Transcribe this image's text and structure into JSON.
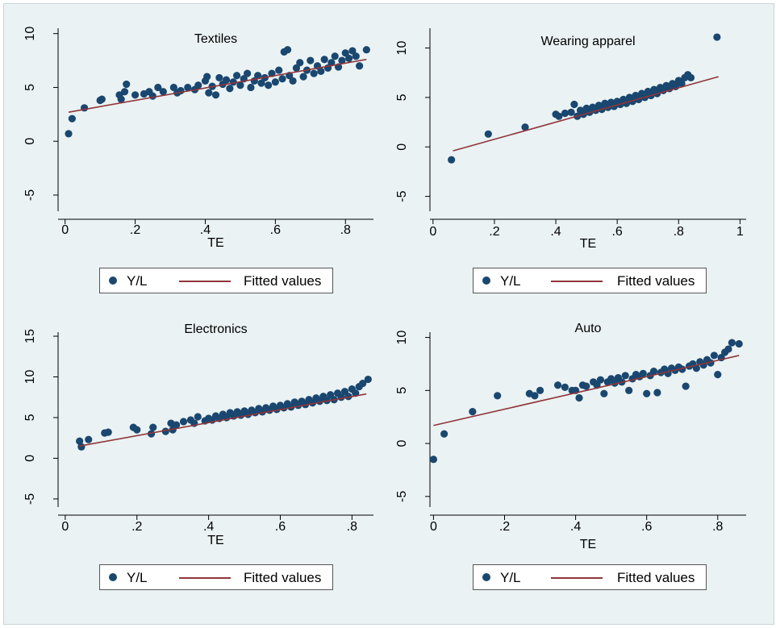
{
  "colors": {
    "background": "#eaf2f3",
    "marker": "#1a476f",
    "fit_line": "#90353b",
    "axis": "#000000"
  },
  "chart_data": [
    {
      "type": "scatter",
      "title": "Textiles",
      "xlabel": "TE",
      "ylabel": "",
      "xlim": [
        -0.02,
        0.88
      ],
      "ylim": [
        -6.5,
        10.5
      ],
      "xticks": [
        0,
        0.2,
        0.4,
        0.6,
        0.8
      ],
      "xtick_labels": [
        "0",
        ".2",
        ".4",
        ".6",
        ".8"
      ],
      "yticks": [
        -5,
        0,
        5,
        10
      ],
      "ytick_labels": [
        "-5",
        "0",
        "5",
        "10"
      ],
      "grid": false,
      "legend": {
        "position": "bottom",
        "entries": [
          "Y/L",
          "Fitted values"
        ]
      },
      "fit": {
        "x": [
          0.01,
          0.86
        ],
        "y": [
          2.7,
          7.6
        ]
      },
      "series": [
        {
          "name": "Y/L",
          "kind": "scatter",
          "points": [
            [
              0.01,
              0.7
            ],
            [
              0.02,
              2.1
            ],
            [
              0.055,
              3.1
            ],
            [
              0.1,
              3.8
            ],
            [
              0.105,
              3.9
            ],
            [
              0.155,
              4.3
            ],
            [
              0.16,
              3.9
            ],
            [
              0.17,
              4.6
            ],
            [
              0.175,
              5.3
            ],
            [
              0.2,
              4.3
            ],
            [
              0.225,
              4.4
            ],
            [
              0.24,
              4.6
            ],
            [
              0.25,
              4.2
            ],
            [
              0.265,
              5.0
            ],
            [
              0.28,
              4.6
            ],
            [
              0.31,
              5.0
            ],
            [
              0.32,
              4.5
            ],
            [
              0.33,
              4.7
            ],
            [
              0.35,
              5.0
            ],
            [
              0.37,
              4.8
            ],
            [
              0.38,
              5.2
            ],
            [
              0.4,
              5.6
            ],
            [
              0.405,
              6.0
            ],
            [
              0.41,
              4.5
            ],
            [
              0.42,
              5.1
            ],
            [
              0.43,
              4.3
            ],
            [
              0.44,
              5.9
            ],
            [
              0.45,
              5.3
            ],
            [
              0.46,
              5.7
            ],
            [
              0.47,
              4.9
            ],
            [
              0.48,
              5.5
            ],
            [
              0.49,
              6.1
            ],
            [
              0.5,
              5.2
            ],
            [
              0.51,
              5.8
            ],
            [
              0.52,
              6.3
            ],
            [
              0.53,
              5.0
            ],
            [
              0.54,
              5.6
            ],
            [
              0.55,
              6.1
            ],
            [
              0.56,
              5.4
            ],
            [
              0.57,
              5.9
            ],
            [
              0.58,
              5.2
            ],
            [
              0.59,
              6.3
            ],
            [
              0.6,
              5.5
            ],
            [
              0.61,
              6.6
            ],
            [
              0.62,
              5.8
            ],
            [
              0.625,
              8.3
            ],
            [
              0.635,
              8.5
            ],
            [
              0.64,
              6.1
            ],
            [
              0.65,
              5.6
            ],
            [
              0.66,
              6.8
            ],
            [
              0.67,
              7.3
            ],
            [
              0.68,
              6.0
            ],
            [
              0.69,
              6.6
            ],
            [
              0.7,
              7.5
            ],
            [
              0.71,
              6.3
            ],
            [
              0.72,
              7.0
            ],
            [
              0.73,
              6.5
            ],
            [
              0.74,
              7.6
            ],
            [
              0.75,
              6.8
            ],
            [
              0.76,
              7.3
            ],
            [
              0.77,
              7.9
            ],
            [
              0.78,
              6.9
            ],
            [
              0.79,
              7.5
            ],
            [
              0.8,
              8.2
            ],
            [
              0.81,
              7.7
            ],
            [
              0.82,
              8.4
            ],
            [
              0.83,
              7.9
            ],
            [
              0.84,
              7.0
            ],
            [
              0.86,
              8.5
            ]
          ]
        }
      ]
    },
    {
      "type": "scatter",
      "title": "Wearing apparel",
      "xlabel": "TE",
      "ylabel": "",
      "xlim": [
        -0.01,
        1.02
      ],
      "ylim": [
        -6.5,
        12.0
      ],
      "xticks": [
        0,
        0.2,
        0.4,
        0.6,
        0.8,
        1.0
      ],
      "xtick_labels": [
        "0",
        ".2",
        ".4",
        ".6",
        ".8",
        "1"
      ],
      "yticks": [
        -5,
        0,
        5,
        10
      ],
      "ytick_labels": [
        "-5",
        "0",
        "5",
        "10"
      ],
      "grid": false,
      "legend": {
        "position": "bottom",
        "entries": [
          "Y/L",
          "Fitted values"
        ]
      },
      "fit": {
        "x": [
          0.065,
          0.93
        ],
        "y": [
          -0.4,
          7.1
        ]
      },
      "series": [
        {
          "name": "Y/L",
          "kind": "scatter",
          "points": [
            [
              0.06,
              -1.3
            ],
            [
              0.18,
              1.3
            ],
            [
              0.3,
              2.0
            ],
            [
              0.4,
              3.3
            ],
            [
              0.41,
              3.1
            ],
            [
              0.43,
              3.4
            ],
            [
              0.45,
              3.5
            ],
            [
              0.46,
              4.3
            ],
            [
              0.47,
              3.1
            ],
            [
              0.48,
              3.7
            ],
            [
              0.49,
              3.3
            ],
            [
              0.5,
              3.9
            ],
            [
              0.51,
              3.5
            ],
            [
              0.52,
              4.0
            ],
            [
              0.53,
              3.7
            ],
            [
              0.54,
              4.2
            ],
            [
              0.55,
              3.8
            ],
            [
              0.56,
              4.4
            ],
            [
              0.57,
              4.0
            ],
            [
              0.58,
              4.5
            ],
            [
              0.59,
              4.1
            ],
            [
              0.6,
              4.6
            ],
            [
              0.61,
              4.3
            ],
            [
              0.62,
              4.8
            ],
            [
              0.63,
              4.4
            ],
            [
              0.64,
              5.0
            ],
            [
              0.65,
              4.6
            ],
            [
              0.66,
              5.2
            ],
            [
              0.67,
              4.8
            ],
            [
              0.68,
              5.4
            ],
            [
              0.69,
              5.0
            ],
            [
              0.7,
              5.6
            ],
            [
              0.71,
              5.2
            ],
            [
              0.72,
              5.8
            ],
            [
              0.73,
              5.4
            ],
            [
              0.74,
              6.0
            ],
            [
              0.75,
              5.7
            ],
            [
              0.76,
              6.2
            ],
            [
              0.77,
              5.9
            ],
            [
              0.78,
              6.4
            ],
            [
              0.79,
              6.1
            ],
            [
              0.8,
              6.7
            ],
            [
              0.81,
              6.4
            ],
            [
              0.82,
              7.0
            ],
            [
              0.83,
              7.3
            ],
            [
              0.84,
              7.0
            ],
            [
              0.925,
              11.1
            ]
          ]
        }
      ]
    },
    {
      "type": "scatter",
      "title": "Electronics",
      "xlabel": "TE",
      "ylabel": "",
      "xlim": [
        -0.02,
        0.86
      ],
      "ylim": [
        -6.0,
        15.5
      ],
      "xticks": [
        0,
        0.2,
        0.4,
        0.6,
        0.8
      ],
      "xtick_labels": [
        "0",
        ".2",
        ".4",
        ".6",
        ".8"
      ],
      "yticks": [
        -5,
        0,
        5,
        10,
        15
      ],
      "ytick_labels": [
        "-5",
        "0",
        "5",
        "10",
        "15"
      ],
      "grid": false,
      "legend": {
        "position": "bottom",
        "entries": [
          "Y/L",
          "Fitted values"
        ]
      },
      "fit": {
        "x": [
          0.04,
          0.84
        ],
        "y": [
          1.5,
          7.9
        ]
      },
      "series": [
        {
          "name": "Y/L",
          "kind": "scatter",
          "points": [
            [
              0.04,
              2.1
            ],
            [
              0.045,
              1.4
            ],
            [
              0.065,
              2.3
            ],
            [
              0.11,
              3.1
            ],
            [
              0.12,
              3.2
            ],
            [
              0.19,
              3.8
            ],
            [
              0.2,
              3.5
            ],
            [
              0.24,
              3.0
            ],
            [
              0.245,
              3.8
            ],
            [
              0.28,
              3.3
            ],
            [
              0.295,
              4.3
            ],
            [
              0.3,
              3.5
            ],
            [
              0.31,
              4.1
            ],
            [
              0.33,
              4.5
            ],
            [
              0.35,
              4.7
            ],
            [
              0.36,
              4.3
            ],
            [
              0.37,
              5.1
            ],
            [
              0.39,
              4.6
            ],
            [
              0.4,
              4.9
            ],
            [
              0.41,
              4.7
            ],
            [
              0.42,
              5.2
            ],
            [
              0.43,
              4.9
            ],
            [
              0.44,
              5.4
            ],
            [
              0.45,
              5.0
            ],
            [
              0.46,
              5.6
            ],
            [
              0.47,
              5.2
            ],
            [
              0.48,
              5.7
            ],
            [
              0.49,
              5.3
            ],
            [
              0.5,
              5.8
            ],
            [
              0.51,
              5.4
            ],
            [
              0.52,
              5.9
            ],
            [
              0.53,
              5.6
            ],
            [
              0.54,
              6.1
            ],
            [
              0.55,
              5.7
            ],
            [
              0.56,
              6.2
            ],
            [
              0.57,
              5.9
            ],
            [
              0.58,
              6.4
            ],
            [
              0.59,
              6.0
            ],
            [
              0.6,
              6.5
            ],
            [
              0.61,
              6.2
            ],
            [
              0.62,
              6.7
            ],
            [
              0.63,
              6.3
            ],
            [
              0.64,
              6.9
            ],
            [
              0.65,
              6.5
            ],
            [
              0.66,
              7.0
            ],
            [
              0.67,
              6.6
            ],
            [
              0.68,
              7.2
            ],
            [
              0.69,
              6.8
            ],
            [
              0.7,
              7.4
            ],
            [
              0.71,
              7.0
            ],
            [
              0.72,
              7.6
            ],
            [
              0.73,
              7.1
            ],
            [
              0.74,
              7.8
            ],
            [
              0.75,
              7.2
            ],
            [
              0.76,
              8.0
            ],
            [
              0.77,
              7.5
            ],
            [
              0.78,
              8.2
            ],
            [
              0.79,
              7.6
            ],
            [
              0.8,
              8.5
            ],
            [
              0.81,
              8.0
            ],
            [
              0.82,
              8.8
            ],
            [
              0.83,
              9.2
            ],
            [
              0.845,
              9.7
            ]
          ]
        }
      ]
    },
    {
      "type": "scatter",
      "title": "Auto",
      "xlabel": "TE",
      "ylabel": "",
      "xlim": [
        -0.01,
        0.88
      ],
      "ylim": [
        -6.0,
        10.5
      ],
      "xticks": [
        0,
        0.2,
        0.4,
        0.6,
        0.8
      ],
      "xtick_labels": [
        "0",
        ".2",
        ".4",
        ".6",
        ".8"
      ],
      "yticks": [
        -5,
        0,
        5,
        10
      ],
      "ytick_labels": [
        "-5",
        "0",
        "5",
        "10"
      ],
      "grid": false,
      "legend": {
        "position": "bottom",
        "entries": [
          "Y/L",
          "Fitted values"
        ]
      },
      "fit": {
        "x": [
          0.0,
          0.86
        ],
        "y": [
          1.7,
          8.3
        ]
      },
      "series": [
        {
          "name": "Y/L",
          "kind": "scatter",
          "points": [
            [
              0.0,
              -1.5
            ],
            [
              0.03,
              0.9
            ],
            [
              0.11,
              3.0
            ],
            [
              0.18,
              4.5
            ],
            [
              0.27,
              4.7
            ],
            [
              0.285,
              4.5
            ],
            [
              0.3,
              5.0
            ],
            [
              0.35,
              5.5
            ],
            [
              0.37,
              5.3
            ],
            [
              0.39,
              5.0
            ],
            [
              0.4,
              5.0
            ],
            [
              0.41,
              4.3
            ],
            [
              0.42,
              5.5
            ],
            [
              0.43,
              5.4
            ],
            [
              0.45,
              5.8
            ],
            [
              0.46,
              5.5
            ],
            [
              0.47,
              6.0
            ],
            [
              0.48,
              4.7
            ],
            [
              0.49,
              5.8
            ],
            [
              0.5,
              6.1
            ],
            [
              0.51,
              5.7
            ],
            [
              0.52,
              6.2
            ],
            [
              0.53,
              5.8
            ],
            [
              0.54,
              6.4
            ],
            [
              0.55,
              5.0
            ],
            [
              0.56,
              6.1
            ],
            [
              0.57,
              6.5
            ],
            [
              0.58,
              6.3
            ],
            [
              0.59,
              6.6
            ],
            [
              0.6,
              4.7
            ],
            [
              0.61,
              6.4
            ],
            [
              0.62,
              6.8
            ],
            [
              0.63,
              4.8
            ],
            [
              0.64,
              6.7
            ],
            [
              0.65,
              7.0
            ],
            [
              0.66,
              6.6
            ],
            [
              0.67,
              7.1
            ],
            [
              0.68,
              6.9
            ],
            [
              0.69,
              7.2
            ],
            [
              0.7,
              7.0
            ],
            [
              0.71,
              5.4
            ],
            [
              0.72,
              7.3
            ],
            [
              0.73,
              7.5
            ],
            [
              0.74,
              7.1
            ],
            [
              0.75,
              7.7
            ],
            [
              0.76,
              7.4
            ],
            [
              0.77,
              7.9
            ],
            [
              0.78,
              7.6
            ],
            [
              0.79,
              8.3
            ],
            [
              0.8,
              6.5
            ],
            [
              0.81,
              8.1
            ],
            [
              0.82,
              8.6
            ],
            [
              0.83,
              8.9
            ],
            [
              0.84,
              9.5
            ],
            [
              0.86,
              9.4
            ]
          ]
        }
      ]
    }
  ]
}
